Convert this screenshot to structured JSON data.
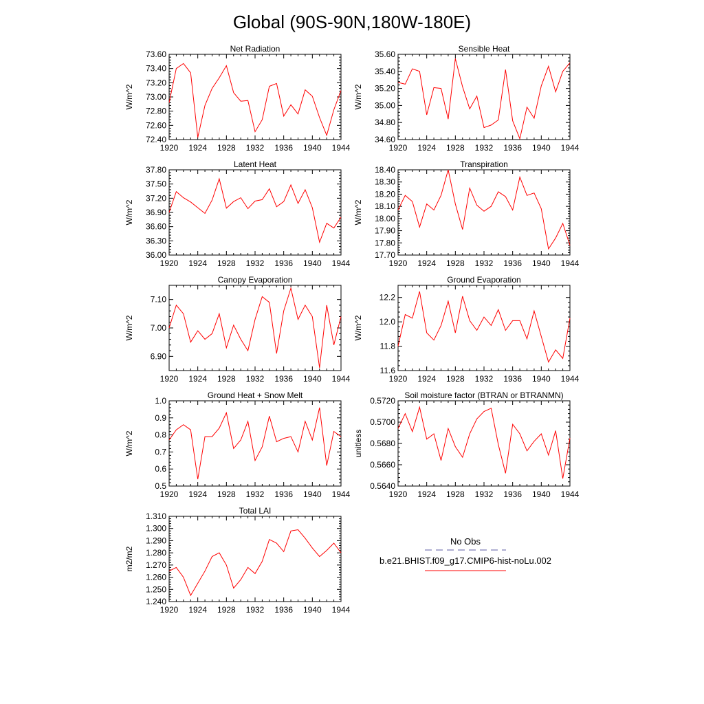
{
  "figure": {
    "title": "Global (90S-90N,180W-180E)"
  },
  "legend": {
    "obs_label": "No Obs",
    "obs_color": "#5b5ba6",
    "model_label": "b.e21.BHIST.f09_g17.CMIP6-hist-noLu.002",
    "model_color": "#ff0000"
  },
  "chart_data": [
    {
      "type": "line",
      "title": "Net Radiation",
      "ylabel": "W/m^2",
      "xlim": [
        1920,
        1944
      ],
      "ylim": [
        72.4,
        73.6
      ],
      "xticks": [
        1920,
        1924,
        1928,
        1932,
        1936,
        1940,
        1944
      ],
      "yticks": [
        72.4,
        72.6,
        72.8,
        73.0,
        73.2,
        73.4,
        73.6
      ],
      "ytick_labels": [
        "72.40",
        "72.60",
        "72.80",
        "73.00",
        "73.20",
        "73.40",
        "73.60"
      ],
      "x": [
        1920,
        1921,
        1922,
        1923,
        1924,
        1925,
        1926,
        1927,
        1928,
        1929,
        1930,
        1931,
        1932,
        1933,
        1934,
        1935,
        1936,
        1937,
        1938,
        1939,
        1940,
        1941,
        1942,
        1943,
        1944
      ],
      "values": [
        72.92,
        73.4,
        73.47,
        73.34,
        72.43,
        72.88,
        73.12,
        73.27,
        73.44,
        73.06,
        72.94,
        72.95,
        72.51,
        72.68,
        73.15,
        73.19,
        72.73,
        72.89,
        72.76,
        73.1,
        73.01,
        72.71,
        72.46,
        72.82,
        73.09
      ]
    },
    {
      "type": "line",
      "title": "Sensible Heat",
      "ylabel": "W/m^2",
      "xlim": [
        1920,
        1944
      ],
      "ylim": [
        34.6,
        35.6
      ],
      "xticks": [
        1920,
        1924,
        1928,
        1932,
        1936,
        1940,
        1944
      ],
      "yticks": [
        34.6,
        34.8,
        35.0,
        35.2,
        35.4,
        35.6
      ],
      "ytick_labels": [
        "34.60",
        "34.80",
        "35.00",
        "35.20",
        "35.40",
        "35.60"
      ],
      "x": [
        1920,
        1921,
        1922,
        1923,
        1924,
        1925,
        1926,
        1927,
        1928,
        1929,
        1930,
        1931,
        1932,
        1933,
        1934,
        1935,
        1936,
        1937,
        1938,
        1939,
        1940,
        1941,
        1942,
        1943,
        1944
      ],
      "values": [
        35.27,
        35.25,
        35.43,
        35.4,
        34.89,
        35.21,
        35.2,
        34.84,
        35.55,
        35.22,
        34.96,
        35.11,
        34.74,
        34.77,
        34.83,
        35.42,
        34.82,
        34.61,
        34.98,
        34.85,
        35.23,
        35.46,
        35.16,
        35.4,
        35.5
      ]
    },
    {
      "type": "line",
      "title": "Latent Heat",
      "ylabel": "W/m^2",
      "xlim": [
        1920,
        1944
      ],
      "ylim": [
        36.0,
        37.8
      ],
      "xticks": [
        1920,
        1924,
        1928,
        1932,
        1936,
        1940,
        1944
      ],
      "yticks": [
        36.0,
        36.3,
        36.6,
        36.9,
        37.2,
        37.5,
        37.8
      ],
      "ytick_labels": [
        "36.00",
        "36.30",
        "36.60",
        "36.90",
        "37.20",
        "37.50",
        "37.80"
      ],
      "x": [
        1920,
        1921,
        1922,
        1923,
        1924,
        1925,
        1926,
        1927,
        1928,
        1929,
        1930,
        1931,
        1932,
        1933,
        1934,
        1935,
        1936,
        1937,
        1938,
        1939,
        1940,
        1941,
        1942,
        1943,
        1944
      ],
      "values": [
        36.9,
        37.34,
        37.21,
        37.12,
        37.0,
        36.88,
        37.16,
        37.61,
        36.99,
        37.13,
        37.21,
        36.98,
        37.14,
        37.17,
        37.4,
        37.02,
        37.13,
        37.48,
        37.09,
        37.38,
        37.0,
        36.27,
        36.67,
        36.57,
        36.8
      ]
    },
    {
      "type": "line",
      "title": "Transpiration",
      "ylabel": "W/m^2",
      "xlim": [
        1920,
        1944
      ],
      "ylim": [
        17.7,
        18.4
      ],
      "xticks": [
        1920,
        1924,
        1928,
        1932,
        1936,
        1940,
        1944
      ],
      "yticks": [
        17.7,
        17.8,
        17.9,
        18.0,
        18.1,
        18.2,
        18.3,
        18.4
      ],
      "ytick_labels": [
        "17.70",
        "17.80",
        "17.90",
        "18.00",
        "18.10",
        "18.20",
        "18.30",
        "18.40"
      ],
      "x": [
        1920,
        1921,
        1922,
        1923,
        1924,
        1925,
        1926,
        1927,
        1928,
        1929,
        1930,
        1931,
        1932,
        1933,
        1934,
        1935,
        1936,
        1937,
        1938,
        1939,
        1940,
        1941,
        1942,
        1943,
        1944
      ],
      "values": [
        18.07,
        18.19,
        18.14,
        17.93,
        18.12,
        18.07,
        18.19,
        18.4,
        18.12,
        17.91,
        18.25,
        18.11,
        18.06,
        18.1,
        18.22,
        18.18,
        18.07,
        18.34,
        18.19,
        18.21,
        18.08,
        17.75,
        17.84,
        17.96,
        17.78
      ]
    },
    {
      "type": "line",
      "title": "Canopy Evaporation",
      "ylabel": "W/m^2",
      "xlim": [
        1920,
        1944
      ],
      "ylim": [
        6.85,
        7.15
      ],
      "xticks": [
        1920,
        1924,
        1928,
        1932,
        1936,
        1940,
        1944
      ],
      "yticks": [
        6.9,
        7.0,
        7.1
      ],
      "ytick_labels": [
        "6.90",
        "7.00",
        "7.10"
      ],
      "x": [
        1920,
        1921,
        1922,
        1923,
        1924,
        1925,
        1926,
        1927,
        1928,
        1929,
        1930,
        1931,
        1932,
        1933,
        1934,
        1935,
        1936,
        1937,
        1938,
        1939,
        1940,
        1941,
        1942,
        1943,
        1944
      ],
      "values": [
        7.0,
        7.08,
        7.05,
        6.95,
        6.99,
        6.96,
        6.98,
        7.05,
        6.93,
        7.01,
        6.96,
        6.92,
        7.03,
        7.11,
        7.09,
        6.91,
        7.06,
        7.14,
        7.03,
        7.08,
        7.04,
        6.86,
        7.08,
        6.94,
        7.04
      ]
    },
    {
      "type": "line",
      "title": "Ground Evaporation",
      "ylabel": "W/m^2",
      "xlim": [
        1920,
        1944
      ],
      "ylim": [
        11.6,
        12.3
      ],
      "xticks": [
        1920,
        1924,
        1928,
        1932,
        1936,
        1940,
        1944
      ],
      "yticks": [
        11.6,
        11.8,
        12.0,
        12.2
      ],
      "ytick_labels": [
        "11.6",
        "11.8",
        "12.0",
        "12.2"
      ],
      "x": [
        1920,
        1921,
        1922,
        1923,
        1924,
        1925,
        1926,
        1927,
        1928,
        1929,
        1930,
        1931,
        1932,
        1933,
        1934,
        1935,
        1936,
        1937,
        1938,
        1939,
        1940,
        1941,
        1942,
        1943,
        1944
      ],
      "values": [
        11.8,
        12.06,
        12.03,
        12.25,
        11.91,
        11.85,
        11.97,
        12.17,
        11.91,
        12.21,
        12.01,
        11.93,
        12.04,
        11.97,
        12.1,
        11.93,
        12.01,
        12.01,
        11.86,
        12.09,
        11.88,
        11.67,
        11.77,
        11.7,
        12.03
      ]
    },
    {
      "type": "line",
      "title": "Ground Heat + Snow Melt",
      "ylabel": "W/m^2",
      "xlim": [
        1920,
        1944
      ],
      "ylim": [
        0.5,
        1.0
      ],
      "xticks": [
        1920,
        1924,
        1928,
        1932,
        1936,
        1940,
        1944
      ],
      "yticks": [
        0.5,
        0.6,
        0.7,
        0.8,
        0.9,
        1.0
      ],
      "ytick_labels": [
        "0.5",
        "0.6",
        "0.7",
        "0.8",
        "0.9",
        "1.0"
      ],
      "x": [
        1920,
        1921,
        1922,
        1923,
        1924,
        1925,
        1926,
        1927,
        1928,
        1929,
        1930,
        1931,
        1932,
        1933,
        1934,
        1935,
        1936,
        1937,
        1938,
        1939,
        1940,
        1941,
        1942,
        1943,
        1944
      ],
      "values": [
        0.77,
        0.83,
        0.86,
        0.83,
        0.54,
        0.79,
        0.79,
        0.84,
        0.93,
        0.72,
        0.77,
        0.88,
        0.65,
        0.73,
        0.91,
        0.76,
        0.78,
        0.79,
        0.7,
        0.88,
        0.77,
        0.96,
        0.62,
        0.82,
        0.79
      ]
    },
    {
      "type": "line",
      "title": "Soil moisture factor (BTRAN or BTRANMN)",
      "ylabel": "unitless",
      "xlim": [
        1920,
        1944
      ],
      "ylim": [
        0.564,
        0.572
      ],
      "xticks": [
        1920,
        1924,
        1928,
        1932,
        1936,
        1940,
        1944
      ],
      "yticks": [
        0.564,
        0.566,
        0.568,
        0.57,
        0.572
      ],
      "ytick_labels": [
        "0.5640",
        "0.5660",
        "0.5680",
        "0.5700",
        "0.5720"
      ],
      "x": [
        1920,
        1921,
        1922,
        1923,
        1924,
        1925,
        1926,
        1927,
        1928,
        1929,
        1930,
        1931,
        1932,
        1933,
        1934,
        1935,
        1936,
        1937,
        1938,
        1939,
        1940,
        1941,
        1942,
        1943,
        1944
      ],
      "values": [
        0.5694,
        0.5708,
        0.5691,
        0.5714,
        0.5684,
        0.5689,
        0.5664,
        0.5694,
        0.5677,
        0.5667,
        0.5689,
        0.5703,
        0.571,
        0.5713,
        0.5679,
        0.5652,
        0.5698,
        0.5689,
        0.5673,
        0.5682,
        0.5689,
        0.5669,
        0.5692,
        0.5647,
        0.5685
      ]
    },
    {
      "type": "line",
      "title": "Total LAI",
      "ylabel": "m2/m2",
      "xlim": [
        1920,
        1944
      ],
      "ylim": [
        1.24,
        1.31
      ],
      "xticks": [
        1920,
        1924,
        1928,
        1932,
        1936,
        1940,
        1944
      ],
      "yticks": [
        1.24,
        1.25,
        1.26,
        1.27,
        1.28,
        1.29,
        1.3,
        1.31
      ],
      "ytick_labels": [
        "1.240",
        "1.250",
        "1.260",
        "1.270",
        "1.280",
        "1.290",
        "1.300",
        "1.310"
      ],
      "x": [
        1920,
        1921,
        1922,
        1923,
        1924,
        1925,
        1926,
        1927,
        1928,
        1929,
        1930,
        1931,
        1932,
        1933,
        1934,
        1935,
        1936,
        1937,
        1938,
        1939,
        1940,
        1941,
        1942,
        1943,
        1944
      ],
      "values": [
        1.265,
        1.268,
        1.26,
        1.245,
        1.255,
        1.265,
        1.277,
        1.28,
        1.27,
        1.251,
        1.258,
        1.268,
        1.263,
        1.273,
        1.291,
        1.288,
        1.281,
        1.298,
        1.299,
        1.292,
        1.284,
        1.277,
        1.282,
        1.288,
        1.28
      ]
    }
  ]
}
